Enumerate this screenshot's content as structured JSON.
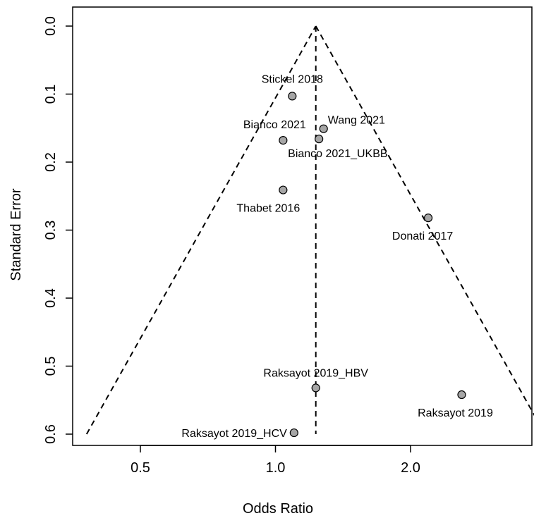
{
  "chart_data": {
    "type": "scatter",
    "title": "",
    "xlabel": "Odds Ratio",
    "ylabel": "Standard Error",
    "x_scale": "log",
    "y_reversed": true,
    "xlim": [
      0.4,
      3.2
    ],
    "ylim": [
      0.0,
      0.6
    ],
    "grid": false,
    "x_ticks": [
      {
        "value": 0.5,
        "label": "0.5"
      },
      {
        "value": 1.0,
        "label": "1.0"
      },
      {
        "value": 2.0,
        "label": "2.0"
      }
    ],
    "y_ticks": [
      {
        "value": 0.0,
        "label": "0.0"
      },
      {
        "value": 0.1,
        "label": "0.1"
      },
      {
        "value": 0.2,
        "label": "0.2"
      },
      {
        "value": 0.3,
        "label": "0.3"
      },
      {
        "value": 0.4,
        "label": "0.4"
      },
      {
        "value": 0.5,
        "label": "0.5"
      },
      {
        "value": 0.6,
        "label": "0.6"
      }
    ],
    "pooled_estimate": 1.23,
    "funnel_se_max": 0.6,
    "points": [
      {
        "label": "Stickel 2018",
        "or": 1.09,
        "se": 0.103,
        "label_pos": "above"
      },
      {
        "label": "Wang 2021",
        "or": 1.28,
        "se": 0.151,
        "label_pos": "above-right"
      },
      {
        "label": "Bianco 2021",
        "or": 1.04,
        "se": 0.168,
        "label_pos": "above-left"
      },
      {
        "label": "Bianco 2021_UKBB",
        "or": 1.25,
        "se": 0.166,
        "label_pos": "below-right"
      },
      {
        "label": "Thabet 2016",
        "or": 1.04,
        "se": 0.241,
        "label_pos": "below"
      },
      {
        "label": "Donati 2017",
        "or": 2.19,
        "se": 0.282,
        "label_pos": "below"
      },
      {
        "label": "Raksayot 2019_HBV",
        "or": 1.23,
        "se": 0.532,
        "label_pos": "above"
      },
      {
        "label": "Raksayot 2019",
        "or": 2.6,
        "se": 0.542,
        "label_pos": "below"
      },
      {
        "label": "Raksayot 2019_HCV",
        "or": 1.1,
        "se": 0.598,
        "label_pos": "left"
      }
    ],
    "colors": {
      "point_fill": "#a6a6a6",
      "point_stroke": "#000000",
      "line": "#000000"
    }
  }
}
